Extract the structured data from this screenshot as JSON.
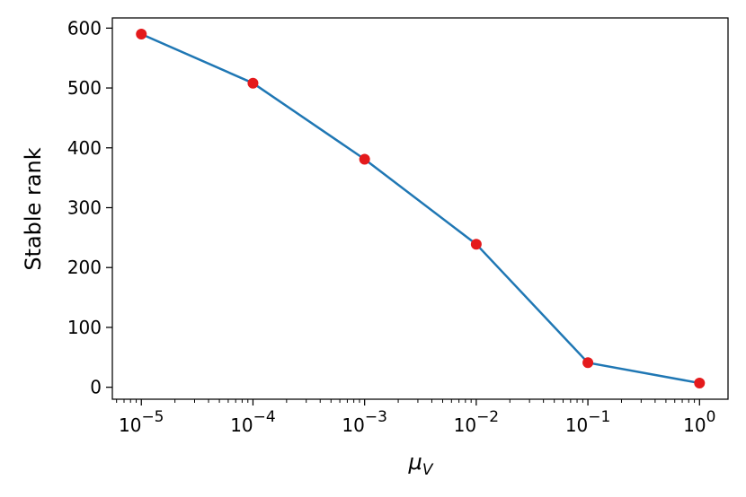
{
  "chart_data": {
    "type": "line",
    "xscale": "log",
    "xlabel_base": "μ",
    "xlabel_sub": "V",
    "ylabel": "Stable rank",
    "xlim": [
      5.5e-06,
      1.8
    ],
    "ylim": [
      -20,
      617
    ],
    "x": [
      1e-05,
      0.0001,
      0.001,
      0.01,
      0.1,
      1
    ],
    "y": [
      590,
      508,
      381,
      239,
      41,
      7
    ],
    "line_color": "#1f77b4",
    "marker_color": "#e41a1c",
    "grid": false,
    "yticks": [
      0,
      100,
      200,
      300,
      400,
      500,
      600
    ],
    "yticks_labels": [
      "0",
      "100",
      "200",
      "300",
      "400",
      "500",
      "600"
    ],
    "xticks": [
      1e-05,
      0.0001,
      0.001,
      0.01,
      0.1,
      1
    ],
    "xticks_base": [
      "10",
      "10",
      "10",
      "10",
      "10",
      "10"
    ],
    "xticks_exp": [
      "−5",
      "−4",
      "−3",
      "−2",
      "−1",
      "0"
    ]
  }
}
